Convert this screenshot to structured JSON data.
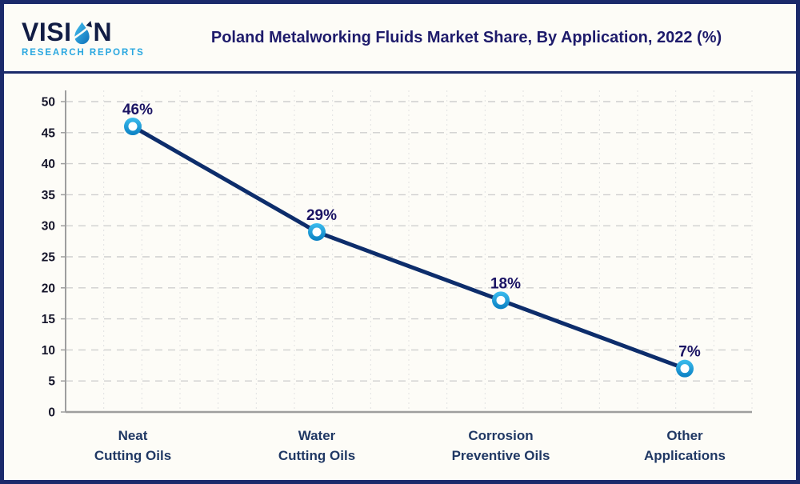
{
  "brand": {
    "name_full": "VISION",
    "name_pre": "VISI",
    "name_post": "N",
    "tagline": "RESEARCH REPORTS"
  },
  "chart_data": {
    "type": "line",
    "title": "Poland Metalworking Fluids Market Share, By Application, 2022 (%)",
    "categories": [
      "Neat Cutting Oils",
      "Water Cutting Oils",
      "Corrosion Preventive Oils",
      "Other Applications"
    ],
    "category_label_lines": [
      [
        "Neat",
        "Cutting Oils"
      ],
      [
        "Water",
        "Cutting Oils"
      ],
      [
        "Corrosion",
        "Preventive Oils"
      ],
      [
        "Other",
        "Applications"
      ]
    ],
    "values": [
      46,
      29,
      18,
      7
    ],
    "point_labels": [
      "46%",
      "29%",
      "18%",
      "7%"
    ],
    "xlabel": "",
    "ylabel": "",
    "ylim": [
      0,
      50
    ],
    "yticks": [
      0,
      5,
      10,
      15,
      20,
      25,
      30,
      35,
      40,
      45,
      50
    ],
    "grid": {
      "horizontal": "dashed",
      "vertical": "dotted"
    },
    "legend": "none",
    "marker": "donut"
  },
  "colors": {
    "frame_border": "#1b2a6b",
    "background": "#fdfcf7",
    "title": "#1e1b6b",
    "logo_text": "#111c44",
    "tagline": "#2aa7e0",
    "line": "#0d2d6b",
    "marker_light": "#3cbdee",
    "marker_dark": "#0a7fc2",
    "marker_hole": "#ffffff",
    "value_label": "#1b1464",
    "category_label": "#203864",
    "tick_label": "#15152a",
    "axis": "#9e9e9e",
    "grid_dash": "#cfcfcf",
    "grid_dot": "#e2e2e2"
  }
}
